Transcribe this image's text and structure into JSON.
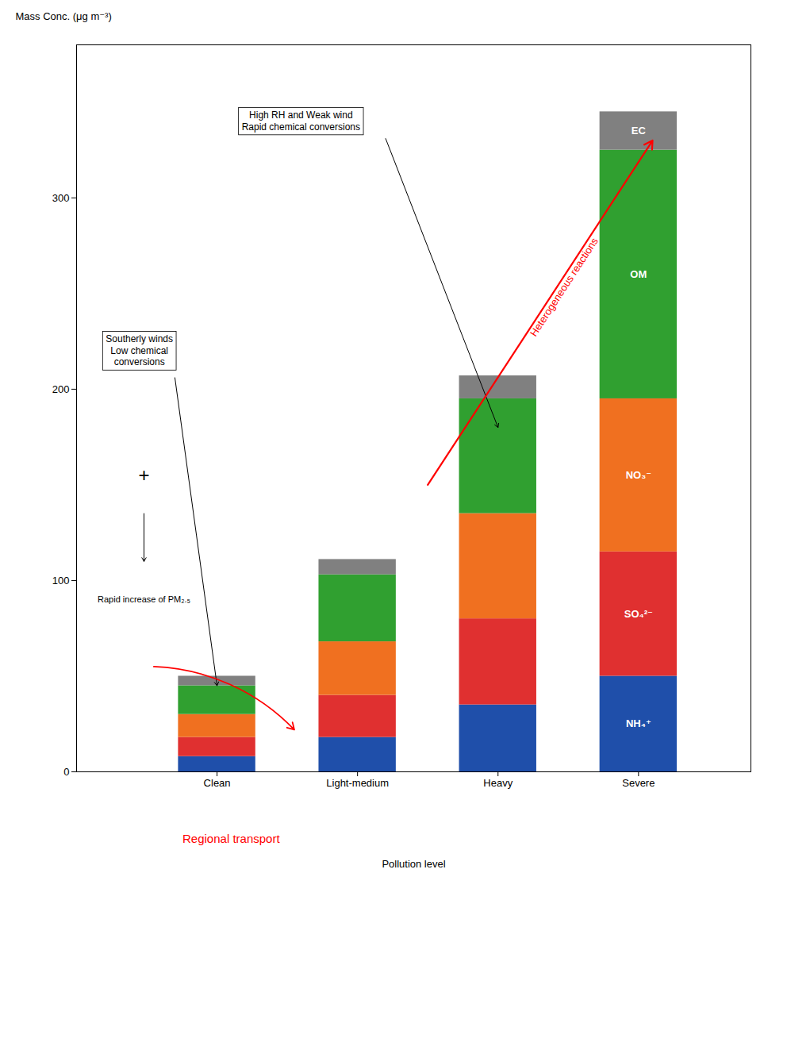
{
  "chart_data": {
    "type": "bar",
    "stacked": true,
    "categories": [
      "Clean",
      "Light-medium",
      "Heavy",
      "Severe"
    ],
    "series": [
      {
        "name": "NH₄⁺",
        "color": "#1f4faa",
        "values": [
          8,
          18,
          35,
          50
        ]
      },
      {
        "name": "SO₄²⁻",
        "color": "#e03030",
        "values": [
          10,
          22,
          45,
          65
        ]
      },
      {
        "name": "NO₃⁻",
        "color": "#f07020",
        "values": [
          12,
          28,
          55,
          80
        ]
      },
      {
        "name": "OM",
        "color": "#30a030",
        "values": [
          15,
          35,
          60,
          130
        ]
      },
      {
        "name": "EC",
        "color": "#808080",
        "values": [
          5,
          8,
          12,
          20
        ]
      }
    ],
    "xlabel": "Pollution level",
    "ylabel": "Mass Conc. (μg m⁻³)",
    "ylim": [
      0,
      380
    ],
    "yticks": [
      0,
      100,
      200,
      300
    ],
    "annotations": [
      "Southerly winds\nLow chemical\nconversions",
      "+",
      "Rapid increase of PM₂.₅",
      "High RH and Weak wind\nRapid chemical conversions",
      "Heterogeneous reactions",
      "Regional transport"
    ]
  }
}
